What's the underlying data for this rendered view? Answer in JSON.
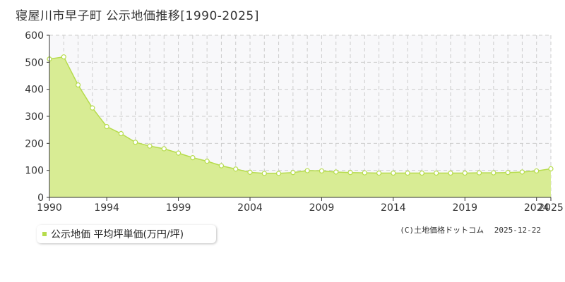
{
  "title": "寝屋川市早子町 公示地価推移[1990-2025]",
  "legend": {
    "label": "公示地価 平均坪単価(万円/坪)"
  },
  "credit": {
    "source": "(C)土地価格ドットコム",
    "date": "2025-12-22"
  },
  "colors": {
    "fill": "#d8ec94",
    "line": "#b6dc4c",
    "marker_stroke": "#b6dc4c",
    "marker_fill": "#ffffff",
    "plot_bg": "#f8f8fa",
    "grid": "#cccccc",
    "axis": "#333333"
  },
  "chart_data": {
    "type": "area",
    "title": "寝屋川市早子町 公示地価推移[1990-2025]",
    "xlabel": "",
    "ylabel": "",
    "xlim": [
      1990,
      2025
    ],
    "ylim": [
      0,
      600
    ],
    "yticks": [
      0,
      100,
      200,
      300,
      400,
      500,
      600
    ],
    "xticks": [
      1990,
      1994,
      1999,
      2004,
      2009,
      2014,
      2019,
      2024,
      2025
    ],
    "grid": true,
    "legend_position": "bottom-left",
    "series": [
      {
        "name": "公示地価 平均坪単価(万円/坪)",
        "x": [
          1990,
          1991,
          1992,
          1993,
          1994,
          1995,
          1996,
          1997,
          1998,
          1999,
          2000,
          2001,
          2002,
          2003,
          2004,
          2005,
          2006,
          2007,
          2008,
          2009,
          2010,
          2011,
          2012,
          2013,
          2014,
          2015,
          2016,
          2017,
          2018,
          2019,
          2020,
          2021,
          2022,
          2023,
          2024,
          2025
        ],
        "y": [
          512,
          520,
          416,
          331,
          262,
          236,
          204,
          190,
          180,
          164,
          147,
          134,
          117,
          105,
          93,
          89,
          89,
          92,
          99,
          98,
          94,
          92,
          91,
          90,
          90,
          90,
          90,
          90,
          90,
          90,
          91,
          91,
          92,
          94,
          98,
          106
        ]
      }
    ]
  }
}
